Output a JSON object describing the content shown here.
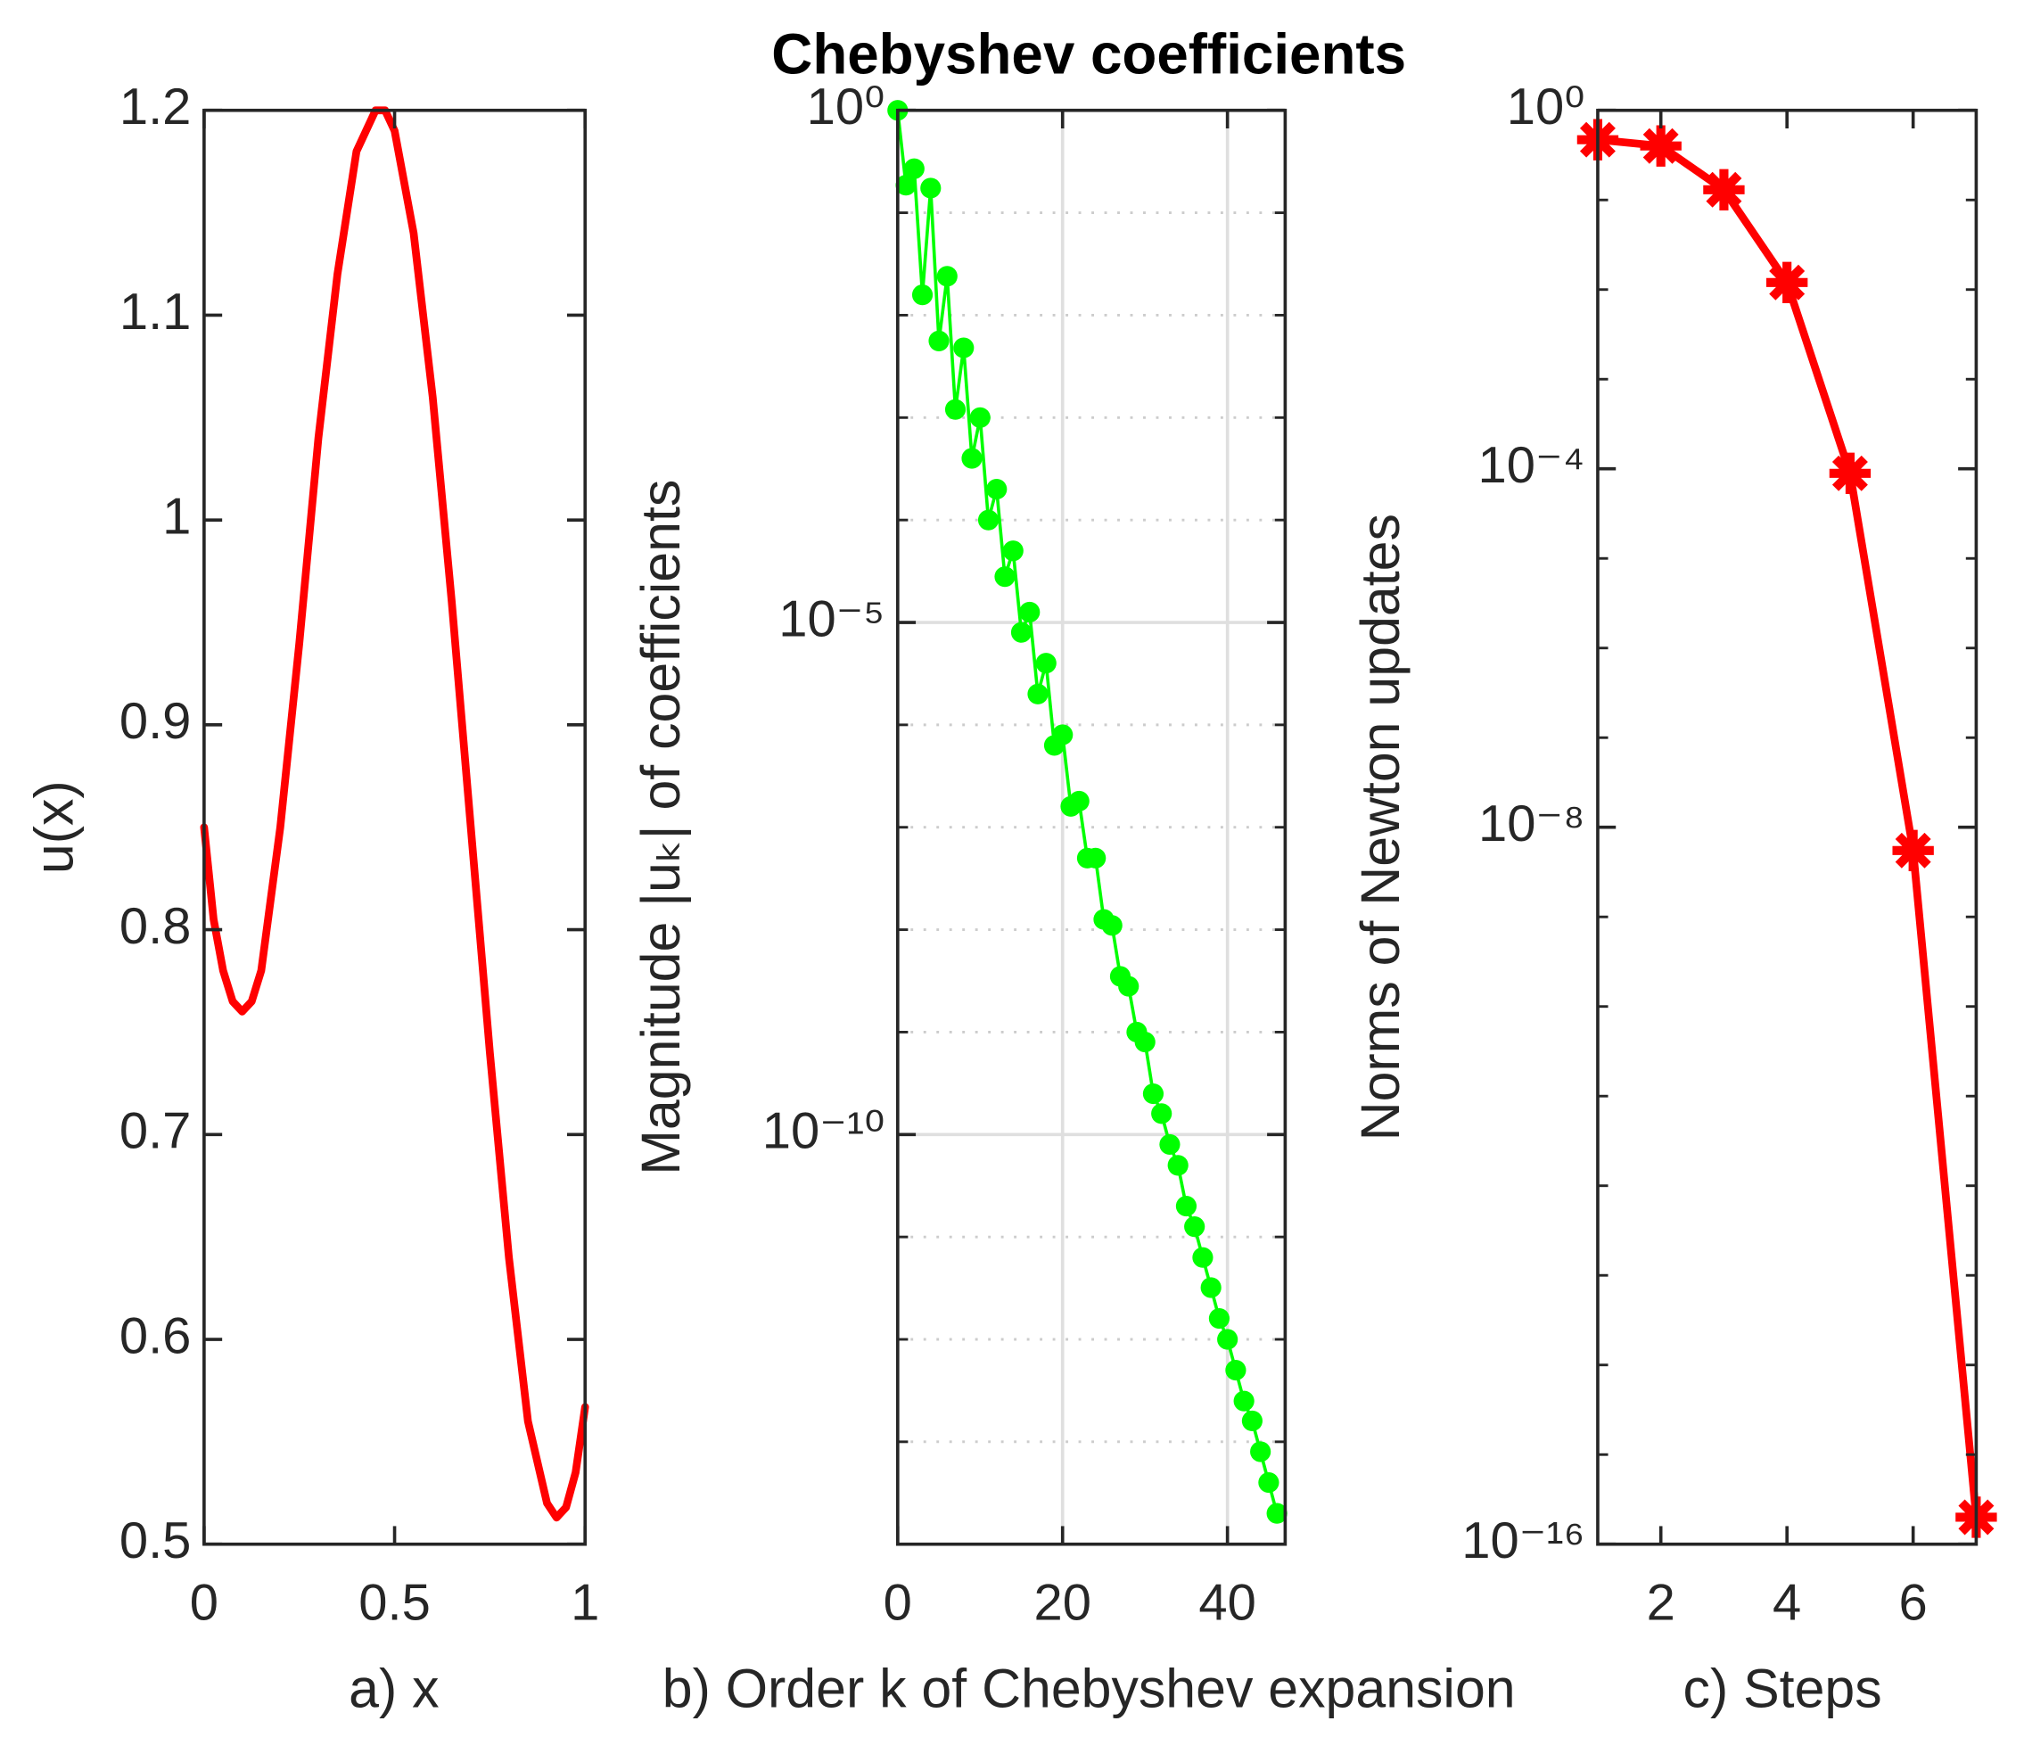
{
  "chart_data": [
    {
      "type": "line",
      "xlabel": "a) x",
      "ylabel": "u(x)",
      "x": [
        0,
        0.025,
        0.05,
        0.075,
        0.1,
        0.125,
        0.15,
        0.2,
        0.25,
        0.3,
        0.35,
        0.4,
        0.45,
        0.475,
        0.5,
        0.55,
        0.6,
        0.65,
        0.7,
        0.75,
        0.8,
        0.85,
        0.9,
        0.925,
        0.95,
        0.975,
        1.0
      ],
      "series": [
        {
          "color": "#ff0000",
          "width": 6,
          "marker": "none",
          "values": [
            0.85,
            0.805,
            0.78,
            0.765,
            0.76,
            0.765,
            0.78,
            0.85,
            0.94,
            1.04,
            1.12,
            1.18,
            1.2,
            1.2,
            1.19,
            1.14,
            1.06,
            0.96,
            0.85,
            0.74,
            0.64,
            0.56,
            0.52,
            0.513,
            0.518,
            0.535,
            0.567
          ]
        }
      ],
      "xlim": [
        0,
        1
      ],
      "ylim": [
        0.5,
        1.2
      ],
      "xticks": [
        0,
        0.5,
        1
      ],
      "yticks": [
        0.5,
        0.6,
        0.7,
        0.8,
        0.9,
        1,
        1.1,
        1.2
      ],
      "yscale": "linear",
      "grid": false
    },
    {
      "type": "line",
      "title": "Chebyshev coefficients",
      "xlabel": "b) Order k of Chebyshev expansion",
      "ylabel": "Magnitude |uₖ| of coefficients",
      "x": [
        0,
        1,
        2,
        3,
        4,
        5,
        6,
        7,
        8,
        9,
        10,
        11,
        12,
        13,
        14,
        15,
        16,
        17,
        18,
        19,
        20,
        21,
        22,
        23,
        24,
        25,
        26,
        27,
        28,
        29,
        30,
        31,
        32,
        33,
        34,
        35,
        36,
        37,
        38,
        39,
        40,
        41,
        42,
        43,
        44,
        45,
        46
      ],
      "series": [
        {
          "color": "#00ff00",
          "width": 2.5,
          "marker": "o",
          "values": [
            1,
            0.186,
            0.269,
            0.0158,
            0.174,
            0.0056,
            0.024,
            0.0012,
            0.0048,
            0.0004,
            0.001,
            0.0001,
            0.0002,
            2.8e-05,
            5e-05,
            8e-06,
            1.26e-05,
            2e-06,
            4e-06,
            6.3e-07,
            8e-07,
            1.6e-07,
            1.8e-07,
            5e-08,
            5e-08,
            1.26e-08,
            1.1e-08,
            3.5e-09,
            2.8e-09,
            1e-09,
            8e-10,
            2.5e-10,
            1.6e-10,
            8e-11,
            5e-11,
            2e-11,
            1.26e-11,
            6.3e-12,
            3.2e-12,
            1.6e-12,
            1e-12,
            5e-13,
            2.5e-13,
            1.6e-13,
            8e-14,
            4e-14,
            2e-14
          ]
        }
      ],
      "xlim": [
        0,
        47
      ],
      "ylim": [
        1e-14,
        1
      ],
      "xticks": [
        0,
        20,
        40
      ],
      "yticks": [
        {
          "value": 1,
          "label": "10⁰"
        },
        {
          "value": 1e-05,
          "label": "10⁻⁵"
        },
        {
          "value": 1e-10,
          "label": "10⁻¹⁰"
        }
      ],
      "yminorticks": [
        0.1,
        0.01,
        0.001,
        0.0001,
        1e-06,
        1e-07,
        1e-08,
        1e-09,
        1e-11,
        1e-12,
        1e-13
      ],
      "yscale": "log",
      "grid": true
    },
    {
      "type": "line",
      "xlabel": "c) Steps",
      "ylabel": "Norms of Newton updates",
      "x": [
        1,
        2,
        3,
        4,
        5,
        6,
        7
      ],
      "series": [
        {
          "color": "#ff0000",
          "width": 6,
          "marker": "*",
          "values": [
            0.47,
            0.4,
            0.13,
            0.012,
            8.9e-05,
            5.5e-09,
            2e-16
          ]
        }
      ],
      "xlim": [
        1,
        7
      ],
      "ylim": [
        1e-16,
        1
      ],
      "xticks": [
        2,
        4,
        6
      ],
      "yticks": [
        {
          "value": 1,
          "label": "10⁰"
        },
        {
          "value": 0.0001,
          "label": "10⁻⁴"
        },
        {
          "value": 1e-08,
          "label": "10⁻⁸"
        },
        {
          "value": 1e-16,
          "label": "10⁻¹⁶"
        }
      ],
      "yminorticks": [
        0.1,
        0.01,
        0.001,
        1e-05,
        1e-06,
        1e-07,
        1e-09,
        1e-10,
        1e-11,
        1e-12,
        1e-13,
        1e-14,
        1e-15
      ],
      "yscale": "log",
      "grid": false
    }
  ]
}
